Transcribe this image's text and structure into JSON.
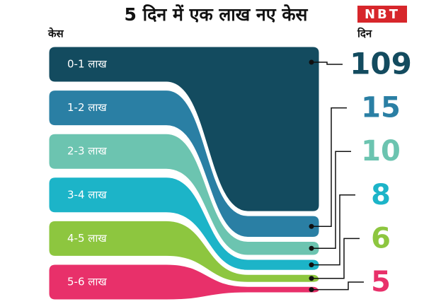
{
  "chart_data": {
    "type": "ribbon",
    "title": "5 दिन में एक लाख नए केस",
    "logo": "NBT",
    "left_label": "केस",
    "right_label": "दिन",
    "categories": [
      "0-1 लाख",
      "1-2 लाख",
      "2-3 लाख",
      "3-4 लाख",
      "4-5 लाख",
      "5-6 लाख"
    ],
    "values": [
      109,
      15,
      10,
      8,
      6,
      5
    ],
    "colors": [
      "#134b5f",
      "#2a7fa4",
      "#6cc4b0",
      "#1cb4c8",
      "#8dc63f",
      "#e8306a"
    ]
  }
}
